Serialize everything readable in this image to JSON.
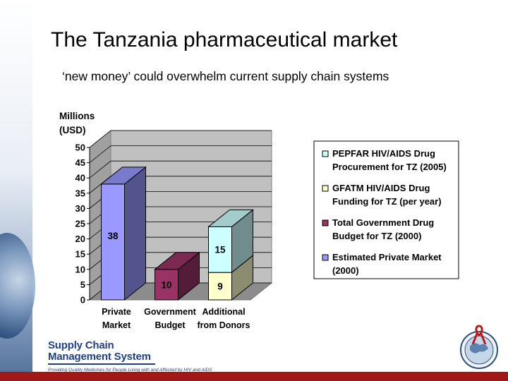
{
  "slide": {
    "title": "The Tanzania pharmaceutical market",
    "subtitle": "‘new money’ could overwhelm current supply chain systems"
  },
  "footer": {
    "logo_line1": "Supply Chain",
    "logo_line2": "Management System",
    "tagline": "Providing Quality Medicines for People Living with and Affected by HIV and AIDS"
  },
  "colors": {
    "private_market": "#9999ff",
    "government_budget": "#993366",
    "gfatm": "#ffffcc",
    "pepfar": "#ccffff",
    "accent_bar": "#a01818",
    "logo_blue": "#1e3f8c"
  },
  "chart_data": {
    "type": "bar",
    "stacked": true,
    "three_d": true,
    "ylabel": "Millions\n(USD)",
    "ylim": [
      0,
      50
    ],
    "yticks": [
      0,
      5,
      10,
      15,
      20,
      25,
      30,
      35,
      40,
      45,
      50
    ],
    "grid": true,
    "legend_position": "right",
    "categories": [
      "Private Market",
      "Government Budget",
      "Additional from Donors"
    ],
    "category_labels": [
      [
        "Private",
        "Market"
      ],
      [
        "Government",
        "Budget"
      ],
      [
        "Additional",
        "from Donors"
      ]
    ],
    "series": [
      {
        "name": "Estimated Private Market (2000)",
        "values": [
          38,
          0,
          0
        ],
        "color": "#9999ff"
      },
      {
        "name": "Total Government Drug Budget for TZ (2000)",
        "values": [
          0,
          10,
          0
        ],
        "color": "#993366"
      },
      {
        "name": "GFATM HIV/AIDS Drug Funding for TZ (per year)",
        "values": [
          0,
          0,
          9
        ],
        "color": "#ffffcc"
      },
      {
        "name": "PEPFAR HIV/AIDS Drug Procurement for TZ (2005)",
        "values": [
          0,
          0,
          15
        ],
        "color": "#ccffff"
      }
    ],
    "legend": [
      {
        "lines": [
          "PEPFAR HIV/AIDS Drug",
          "Procurement for TZ (2005)"
        ],
        "color": "#ccffff"
      },
      {
        "lines": [
          "GFATM HIV/AIDS Drug",
          "Funding for TZ (per year)"
        ],
        "color": "#ffffcc"
      },
      {
        "lines": [
          "Total Government Drug",
          "Budget for TZ (2000)"
        ],
        "color": "#993366"
      },
      {
        "lines": [
          "Estimated Private Market",
          "(2000)"
        ],
        "color": "#9999ff"
      }
    ]
  }
}
